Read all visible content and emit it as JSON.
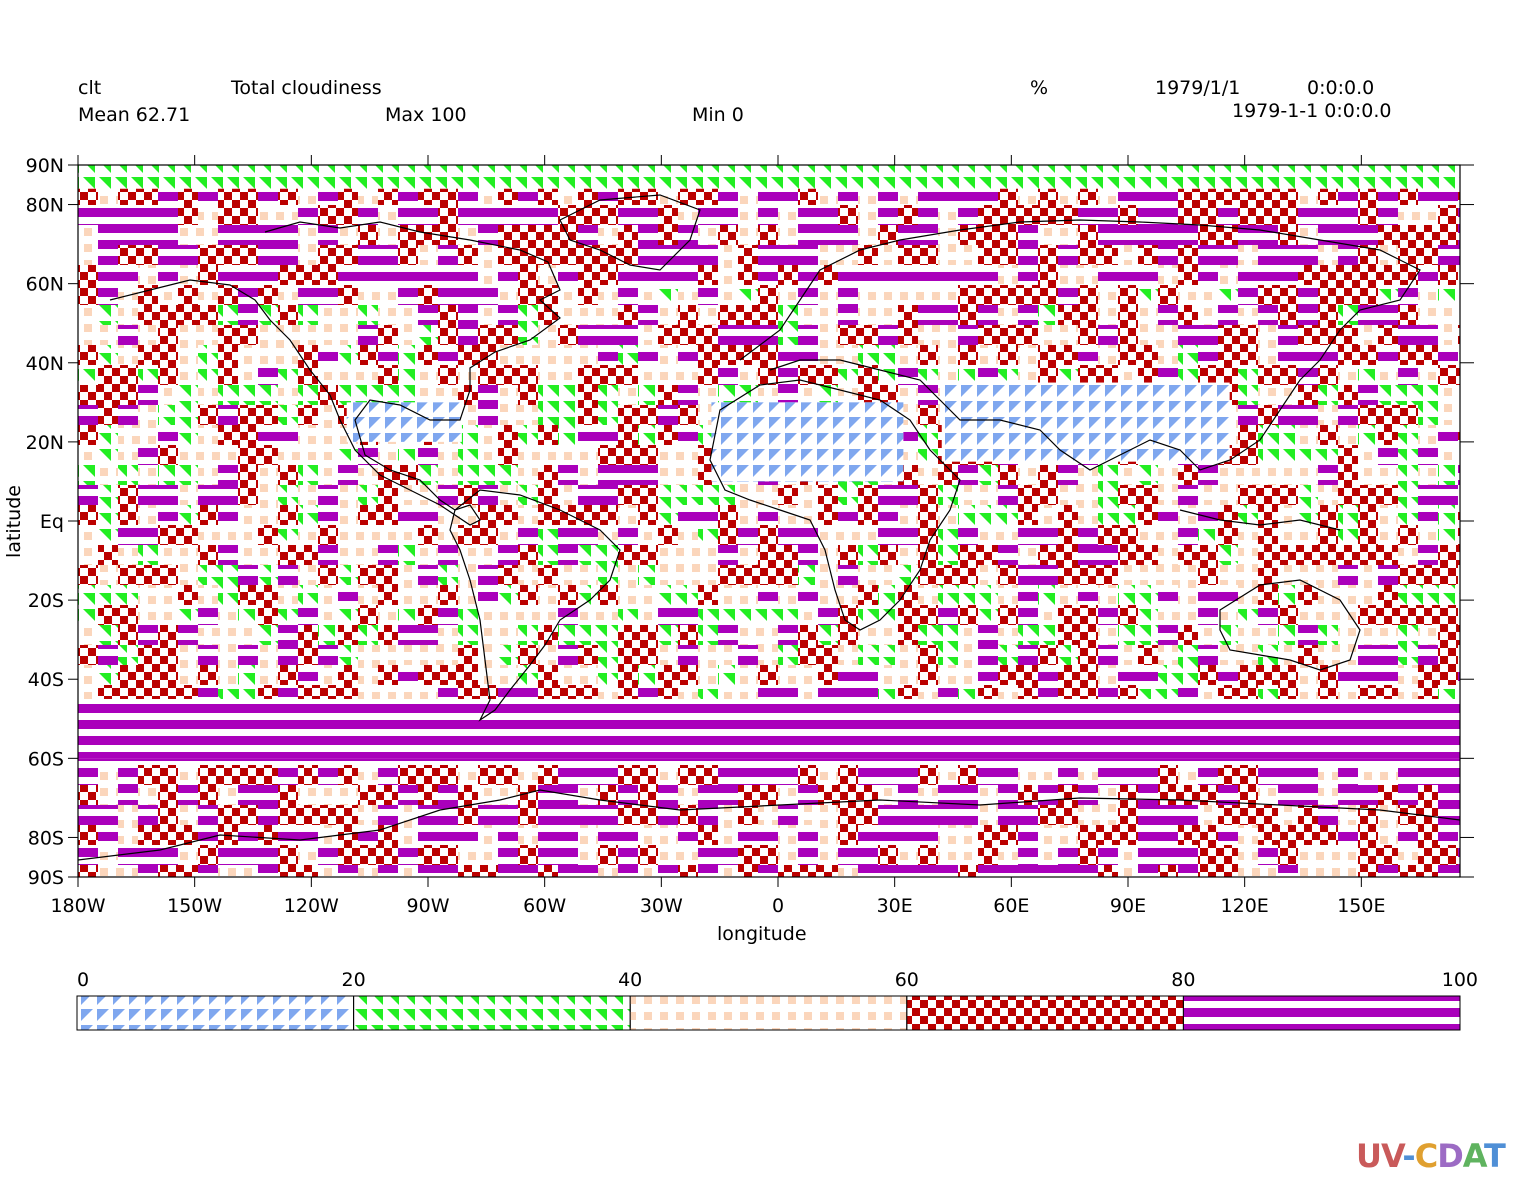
{
  "header": {
    "variable": "clt",
    "long_name": "Total cloudiness",
    "units": "%",
    "date": "1979/1/1",
    "time": "0:0:0.0",
    "datetime": "1979-1-1 0:0:0.0",
    "mean_label": "Mean 62.71",
    "max_label": "Max 100",
    "min_label": "Min 0"
  },
  "axes": {
    "xlabel": "longitude",
    "ylabel": "latitude",
    "lon_ticks": [
      "180W",
      "150W",
      "120W",
      "90W",
      "60W",
      "30W",
      "0",
      "30E",
      "60E",
      "90E",
      "120E",
      "150E"
    ],
    "lat_ticks": [
      "90N",
      "80N",
      "60N",
      "40N",
      "20N",
      "Eq",
      "20S",
      "40S",
      "60S",
      "80S",
      "90S"
    ]
  },
  "legend": {
    "levels": [
      "0",
      "20",
      "40",
      "60",
      "80",
      "100"
    ],
    "bins": [
      {
        "range": [
          0,
          20
        ],
        "pattern": "triangles",
        "color": "#7fa7ef"
      },
      {
        "range": [
          20,
          40
        ],
        "pattern": "triangles",
        "color": "#22ee22"
      },
      {
        "range": [
          40,
          60
        ],
        "pattern": "dots",
        "color": "#fbd6bc"
      },
      {
        "range": [
          60,
          80
        ],
        "pattern": "checker",
        "color": "#bb0000"
      },
      {
        "range": [
          80,
          100
        ],
        "pattern": "stripes",
        "color": "#aa00bb"
      }
    ]
  },
  "chart_data": {
    "type": "heatmap",
    "title": "Total cloudiness",
    "variable": "clt",
    "units": "%",
    "xlim": [
      -180,
      180
    ],
    "ylim": [
      -90,
      90
    ],
    "mean": 62.71,
    "max": 100,
    "min": 0,
    "regions": [
      {
        "lon": [
          -180,
          180
        ],
        "lat": [
          84,
          90
        ],
        "bin": 1
      },
      {
        "lon": [
          -180,
          180
        ],
        "lat": [
          -60,
          -45
        ],
        "bin": 4
      },
      {
        "lon": [
          -15,
          35
        ],
        "lat": [
          10,
          30
        ],
        "bin": 0
      },
      {
        "lon": [
          45,
          120
        ],
        "lat": [
          15,
          35
        ],
        "bin": 0
      },
      {
        "lon": [
          -110,
          -80
        ],
        "lat": [
          20,
          30
        ],
        "bin": 0
      }
    ]
  },
  "branding": {
    "logo_text": "UV-CDAT"
  }
}
